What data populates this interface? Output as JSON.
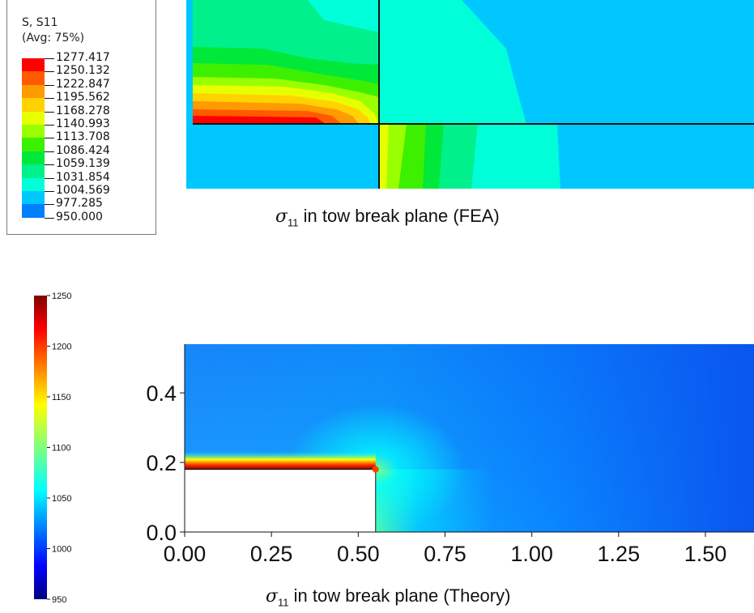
{
  "fea": {
    "legend_title_line1": "S, S11",
    "legend_title_line2": "(Avg: 75%)",
    "legend_values": [
      "1277.417",
      "1250.132",
      "1222.847",
      "1195.562",
      "1168.278",
      "1140.993",
      "1113.708",
      "1086.424",
      "1059.139",
      "1031.854",
      "1004.569",
      "977.285",
      "950.000"
    ],
    "legend_colors": [
      "#ff0000",
      "#ff5a00",
      "#ff9a00",
      "#ffd200",
      "#e8ff00",
      "#9aff00",
      "#3cf000",
      "#00e83a",
      "#00f08c",
      "#00ffd8",
      "#00c8ff",
      "#0080ff",
      "#0030ff"
    ],
    "caption_symbol": "σ",
    "caption_sub": "11",
    "caption_text": " in tow break plane (FEA)"
  },
  "theory": {
    "caption_symbol": "σ",
    "caption_sub": "11",
    "caption_text": " in tow break plane (Theory)"
  },
  "chart_data": {
    "type": "heatmap",
    "title": "σ11 in tow break plane (Theory)",
    "x_ticks": [
      "0.00",
      "0.25",
      "0.50",
      "0.75",
      "1.00",
      "1.25",
      "1.50"
    ],
    "x_tick_values": [
      0.0,
      0.25,
      0.5,
      0.75,
      1.0,
      1.25,
      1.5
    ],
    "y_ticks": [
      "0.0",
      "0.2",
      "0.4"
    ],
    "y_tick_values": [
      0.0,
      0.2,
      0.4
    ],
    "xlim": [
      0.0,
      1.64
    ],
    "ylim": [
      0.0,
      0.54
    ],
    "broken_tow_region": {
      "x": [
        0.0,
        0.55
      ],
      "y": [
        0.0,
        0.18
      ]
    },
    "colorbar": {
      "ticks": [
        "1250",
        "1200",
        "1150",
        "1100",
        "1050",
        "1000",
        "950"
      ],
      "tick_values": [
        1250,
        1200,
        1150,
        1100,
        1050,
        1000,
        950
      ],
      "range": [
        950,
        1250
      ]
    }
  }
}
